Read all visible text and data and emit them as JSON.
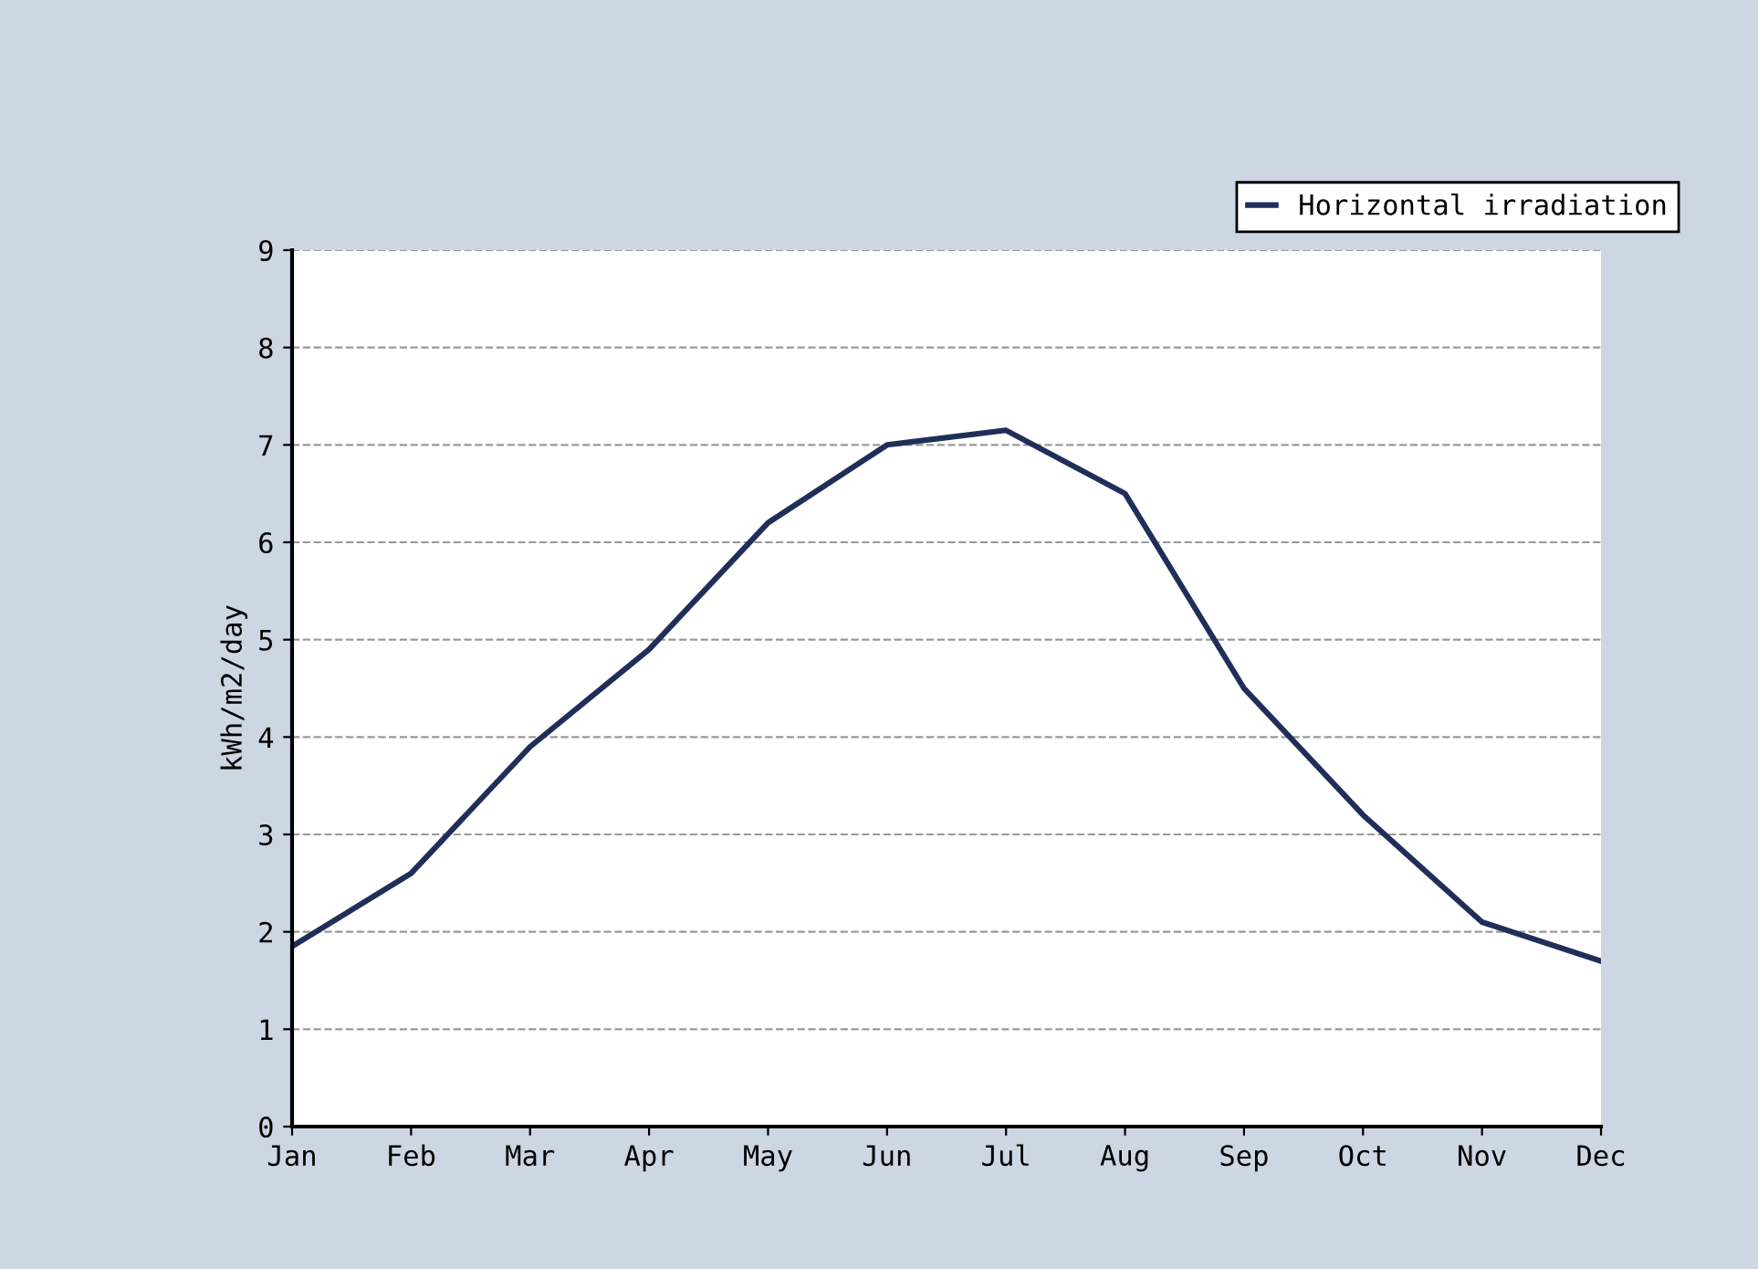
{
  "chart_data": {
    "type": "line",
    "ylabel": "kWh/m2/day",
    "categories": [
      "Jan",
      "Feb",
      "Mar",
      "Apr",
      "May",
      "Jun",
      "Jul",
      "Aug",
      "Sep",
      "Oct",
      "Nov",
      "Dec"
    ],
    "series": [
      {
        "name": "Horizontal irradiation",
        "color": "#1f2f5a",
        "values": [
          1.85,
          2.6,
          3.9,
          4.9,
          6.2,
          7.0,
          7.15,
          6.5,
          4.5,
          3.2,
          2.1,
          1.7
        ]
      }
    ],
    "ylim": [
      0,
      9
    ],
    "yticks": [
      0,
      1,
      2,
      3,
      4,
      5,
      6,
      7,
      8,
      9
    ],
    "grid": "y",
    "legend": "top right",
    "line_style": "solid"
  }
}
